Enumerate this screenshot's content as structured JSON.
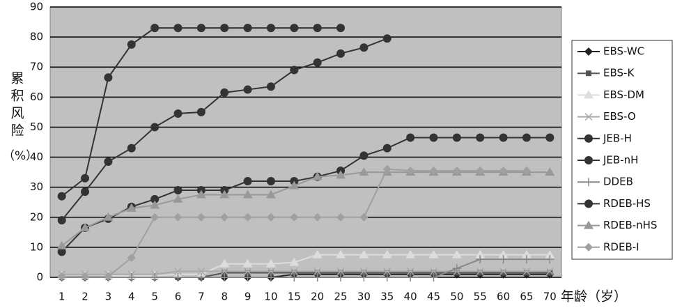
{
  "chart_data": {
    "type": "line",
    "y_label": "累积风险",
    "y_unit": "（%）",
    "x_label": "年龄（岁）",
    "categories": [
      "1",
      "2",
      "3",
      "4",
      "5",
      "6",
      "7",
      "8",
      "9",
      "10",
      "15",
      "20",
      "25",
      "30",
      "35",
      "40",
      "45",
      "50",
      "55",
      "60",
      "65",
      "70"
    ],
    "ylim": [
      0,
      90
    ],
    "yticks": [
      0,
      10,
      20,
      30,
      40,
      50,
      60,
      70,
      80,
      90
    ],
    "grid": true,
    "series": [
      {
        "name": "EBS-WC",
        "color": "#222222",
        "marker": "diamond",
        "values": [
          0,
          0,
          0,
          0,
          0,
          0,
          0,
          0,
          0,
          0,
          1,
          1,
          1,
          1,
          1,
          1,
          1,
          1,
          1,
          1,
          1,
          1
        ]
      },
      {
        "name": "EBS-K",
        "color": "#555555",
        "marker": "square",
        "values": [
          0,
          0,
          0,
          0,
          0,
          0,
          0,
          1.5,
          1.5,
          1.5,
          1.5,
          1.5,
          1.5,
          1.5,
          1.5,
          1.5,
          1.5,
          1.5,
          1.5,
          1.5,
          1.5,
          1.5
        ]
      },
      {
        "name": "EBS-DM",
        "color": "#dddddd",
        "marker": "triangle",
        "values": [
          0.5,
          0.5,
          0.5,
          0.5,
          0.5,
          1,
          1,
          4.5,
          4.5,
          4.5,
          5,
          7.5,
          7.5,
          7.5,
          7.5,
          7.5,
          7.5,
          7.5,
          7.5,
          7.5,
          7.5,
          7.5
        ]
      },
      {
        "name": "EBS-O",
        "color": "#aaaaaa",
        "marker": "x",
        "values": [
          1,
          1,
          1,
          1,
          1,
          2,
          2,
          2,
          2,
          2,
          2,
          2,
          2,
          2,
          2,
          2,
          2,
          2,
          2,
          2,
          2,
          2
        ]
      },
      {
        "name": "JEB-H",
        "color": "#333333",
        "marker": "circle",
        "values": [
          27,
          33,
          66.5,
          77.5,
          83,
          83,
          83,
          83,
          83,
          83,
          83,
          83,
          83,
          null,
          null,
          null,
          null,
          null,
          null,
          null,
          null,
          null
        ]
      },
      {
        "name": "JEB-nH",
        "color": "#333333",
        "marker": "circle",
        "values": [
          19,
          28.5,
          38.5,
          43,
          50,
          54.5,
          55,
          61.5,
          62.5,
          63.5,
          69,
          71.5,
          74.5,
          76.5,
          79.5,
          null,
          null,
          null,
          null,
          null,
          null,
          null
        ]
      },
      {
        "name": "DDEB",
        "color": "#888888",
        "marker": "plus",
        "values": [
          0,
          0,
          0,
          0,
          0,
          0,
          0,
          0,
          0,
          0,
          0,
          0,
          0,
          0,
          0,
          0,
          0,
          3,
          6,
          6,
          6,
          6
        ]
      },
      {
        "name": "RDEB-HS",
        "color": "#333333",
        "marker": "circle",
        "values": [
          8.5,
          16.5,
          19.5,
          23.5,
          26,
          29,
          29,
          29,
          32,
          32,
          32,
          33.5,
          35.5,
          40.5,
          43,
          46.5,
          46.5,
          46.5,
          46.5,
          46.5,
          46.5,
          46.5
        ]
      },
      {
        "name": "RDEB-nHS",
        "color": "#999999",
        "marker": "triangle",
        "values": [
          10.5,
          16.5,
          20,
          23,
          24,
          26,
          27.5,
          27.5,
          27.5,
          27.5,
          30.5,
          33.5,
          34,
          35,
          35,
          35,
          35,
          35,
          35,
          35,
          35,
          35
        ]
      },
      {
        "name": "RDEB-I",
        "color": "#a0a0a0",
        "marker": "diamond",
        "values": [
          0.3,
          0.3,
          0.3,
          6.5,
          20,
          20,
          20,
          20,
          20,
          20,
          20,
          20,
          20,
          20,
          36,
          35.5,
          35.5,
          35.5,
          35.5,
          35.5,
          35.5,
          null
        ]
      }
    ]
  }
}
